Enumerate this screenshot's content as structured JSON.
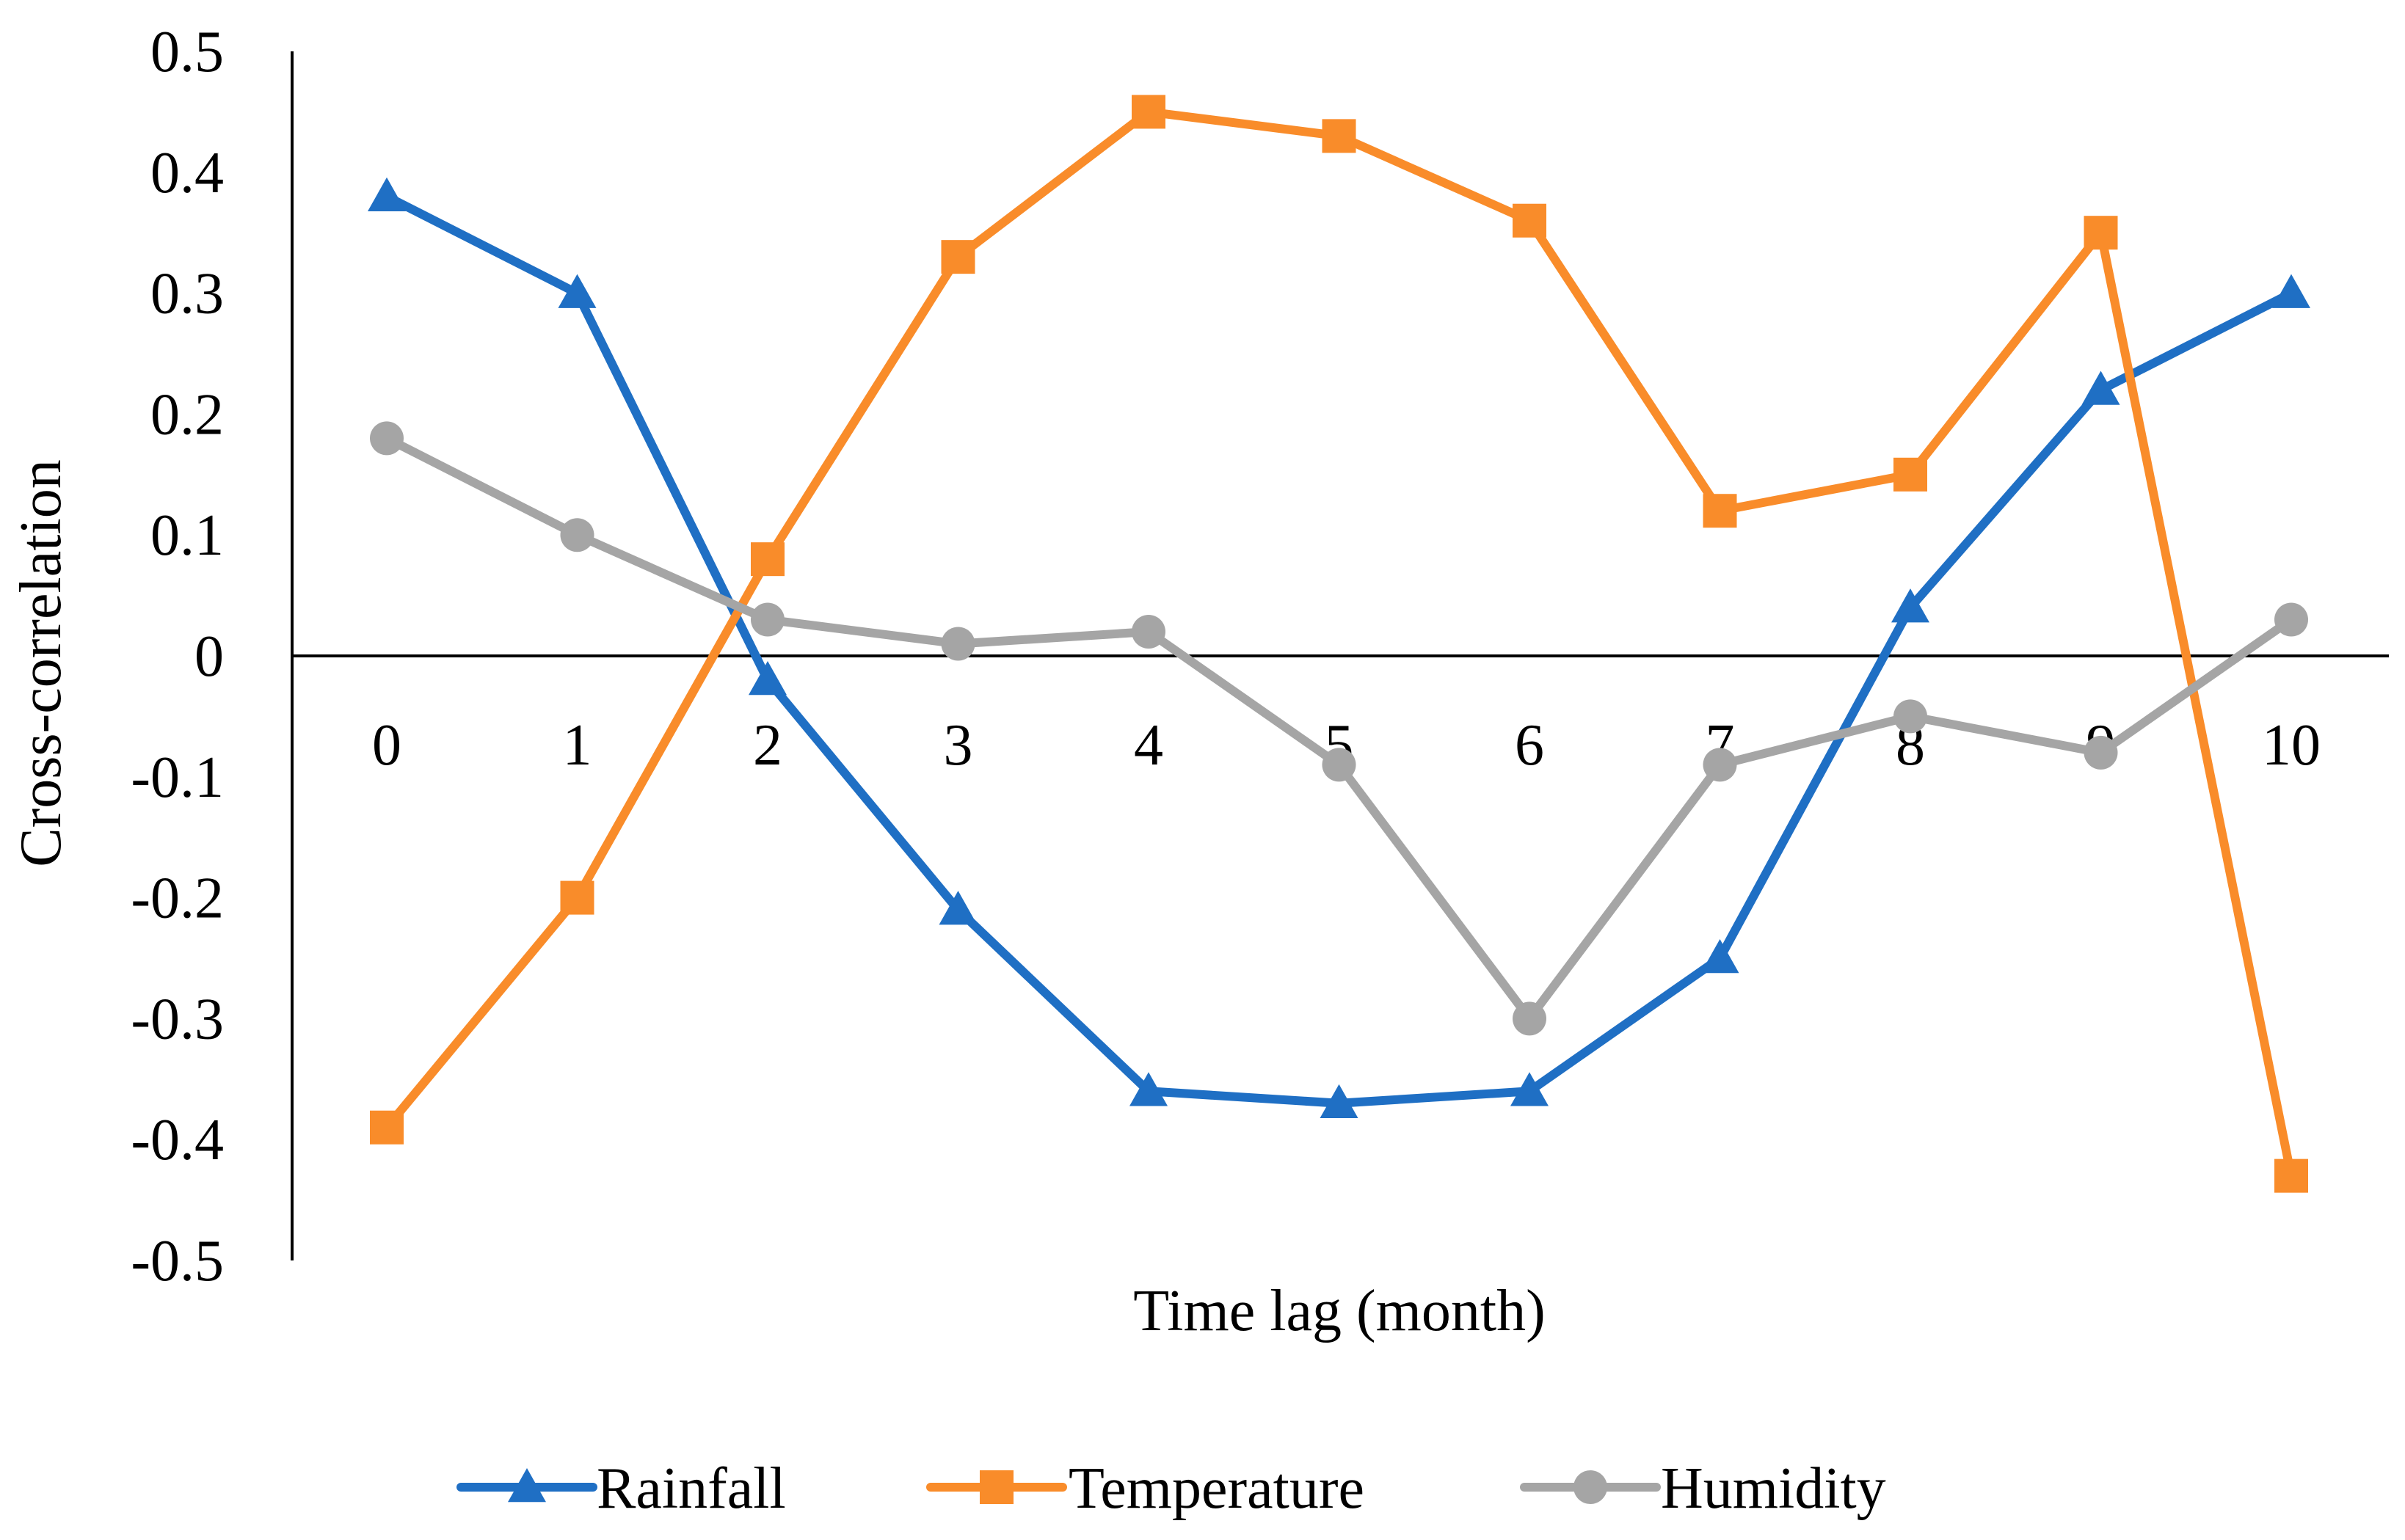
{
  "chart_data": {
    "type": "line",
    "title": "",
    "xlabel": "Time lag (month)",
    "ylabel": "Cross-correlation",
    "x": [
      0,
      1,
      2,
      3,
      4,
      5,
      6,
      7,
      8,
      9,
      10
    ],
    "x_tick_labels": [
      "0",
      "1",
      "2",
      "3",
      "4",
      "5",
      "6",
      "7",
      "8",
      "9",
      "10"
    ],
    "ylim": [
      -0.5,
      0.5
    ],
    "y_ticks": [
      0.5,
      0.4,
      0.3,
      0.2,
      0.1,
      0,
      -0.1,
      -0.2,
      -0.3,
      -0.4,
      -0.5
    ],
    "y_tick_labels": [
      "0.5",
      "0.4",
      "0.3",
      "0.2",
      "0.1",
      "0",
      "-0.1",
      "-0.2",
      "-0.3",
      "-0.4",
      "-0.5"
    ],
    "grid": false,
    "legend_position": "bottom",
    "series": [
      {
        "name": "Rainfall",
        "color": "#1F6FC4",
        "marker": "triangle",
        "values": [
          0.38,
          0.3,
          -0.02,
          -0.21,
          -0.36,
          -0.37,
          -0.36,
          -0.25,
          0.04,
          0.22,
          0.3
        ]
      },
      {
        "name": "Temperature",
        "color": "#F98C2A",
        "marker": "square",
        "values": [
          -0.39,
          -0.2,
          0.08,
          0.33,
          0.45,
          0.43,
          0.36,
          0.12,
          0.15,
          0.35,
          -0.43
        ]
      },
      {
        "name": "Humidity",
        "color": "#A5A5A5",
        "marker": "circle",
        "values": [
          0.18,
          0.1,
          0.03,
          0.01,
          0.02,
          -0.09,
          -0.3,
          -0.09,
          -0.05,
          -0.08,
          0.03
        ]
      }
    ]
  }
}
